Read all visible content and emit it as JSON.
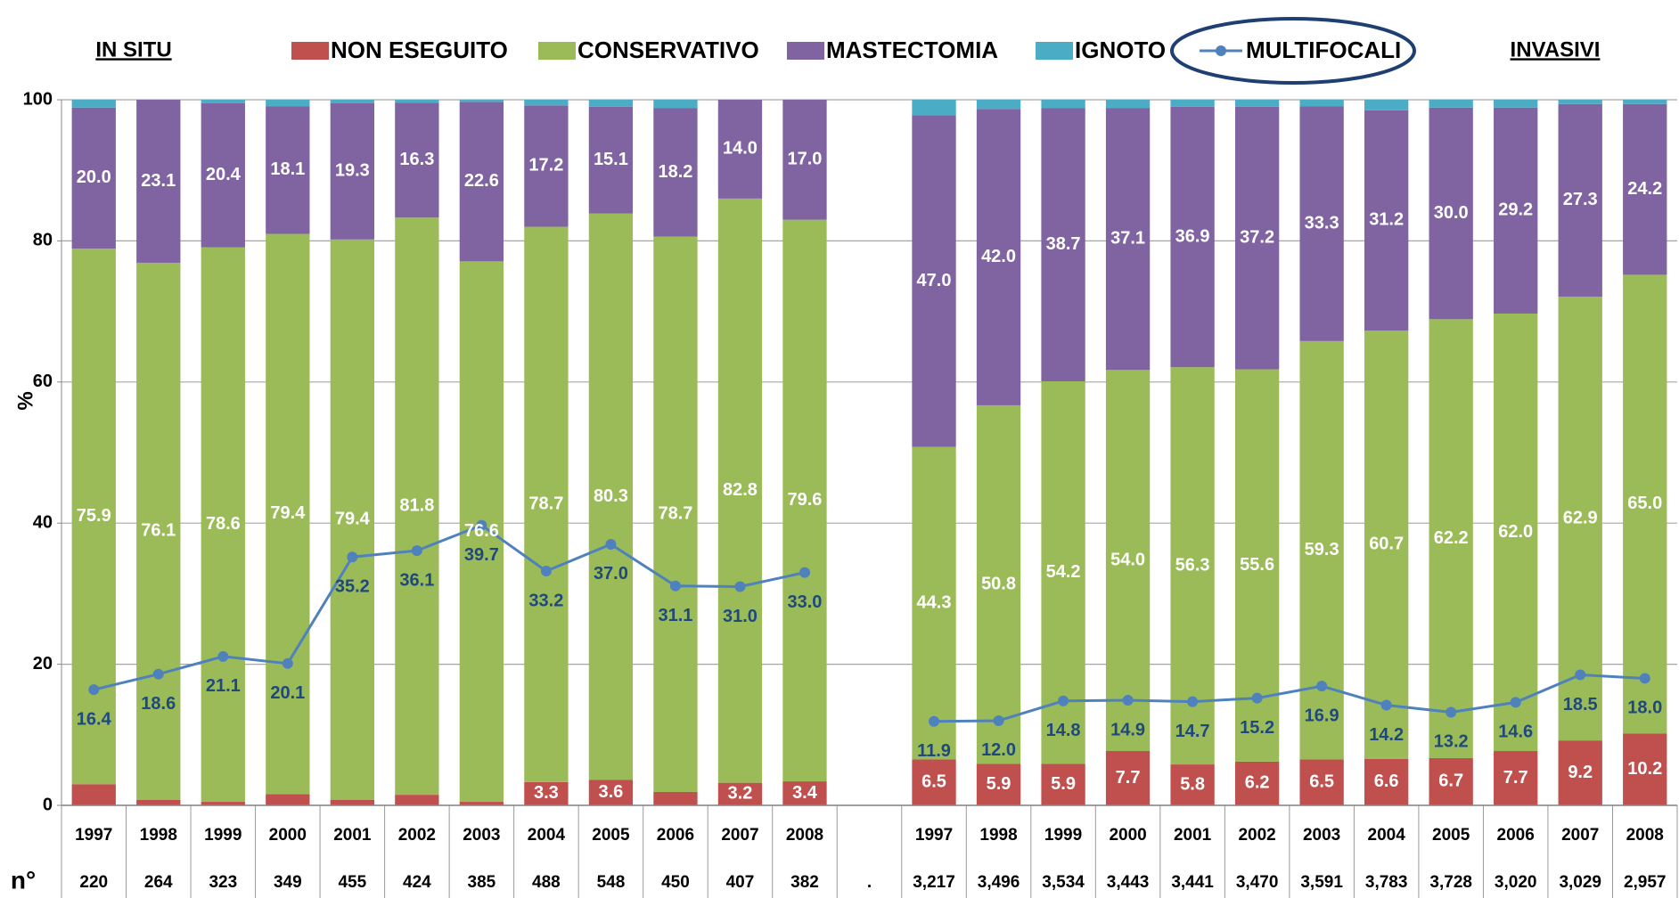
{
  "chart_data": {
    "type": "bar",
    "stacked": true,
    "group_labels": [
      "IN SITU",
      "INVASIVI"
    ],
    "ylabel": "%",
    "row_label": "n°",
    "categories": [
      "1997",
      "1998",
      "1999",
      "2000",
      "2001",
      "2002",
      "2003",
      "2004",
      "2005",
      "2006",
      "2007",
      "2008",
      null,
      "1997",
      "1998",
      "1999",
      "2000",
      "2001",
      "2002",
      "2003",
      "2004",
      "2005",
      "2006",
      "2007",
      "2008"
    ],
    "counts": [
      "220",
      "264",
      "323",
      "349",
      "455",
      "424",
      "385",
      "488",
      "548",
      "450",
      "407",
      "382",
      ".",
      "3,217",
      "3,496",
      "3,534",
      "3,443",
      "3,441",
      "3,470",
      "3,591",
      "3,783",
      "3,728",
      "3,020",
      "3,029",
      "2,957"
    ],
    "ylim": [
      0,
      100
    ],
    "yticks": [
      0,
      20,
      40,
      60,
      80,
      100
    ],
    "grid": true,
    "series": [
      {
        "name": "NON ESEGUITO",
        "color": "#c0504d",
        "type": "bar",
        "values": [
          3.0,
          0.8,
          0.5,
          1.6,
          0.8,
          1.5,
          0.5,
          3.3,
          3.6,
          1.9,
          3.2,
          3.4,
          null,
          6.5,
          5.9,
          5.9,
          7.7,
          5.8,
          6.2,
          6.5,
          6.6,
          6.7,
          7.7,
          9.2,
          10.2
        ],
        "value_labels": [
          null,
          null,
          null,
          null,
          null,
          null,
          null,
          "3.3",
          "3.6",
          null,
          "3.2",
          "3.4",
          null,
          "6.5",
          "5.9",
          "5.9",
          "7.7",
          "5.8",
          "6.2",
          "6.5",
          "6.6",
          "6.7",
          "7.7",
          "9.2",
          "10.2"
        ]
      },
      {
        "name": "CONSERVATIVO",
        "color": "#9bbb59",
        "type": "bar",
        "values": [
          75.9,
          76.1,
          78.6,
          79.4,
          79.4,
          81.8,
          76.6,
          78.7,
          80.3,
          78.7,
          82.8,
          79.6,
          null,
          44.3,
          50.8,
          54.2,
          54.0,
          56.3,
          55.6,
          59.3,
          60.7,
          62.2,
          62.0,
          62.9,
          65.0
        ],
        "value_labels": [
          "75.9",
          "76.1",
          "78.6",
          "79.4",
          "79.4",
          "81.8",
          "76.6",
          "78.7",
          "80.3",
          "78.7",
          "82.8",
          "79.6",
          null,
          "44.3",
          "50.8",
          "54.2",
          "54.0",
          "56.3",
          "55.6",
          "59.3",
          "60.7",
          "62.2",
          "62.0",
          "62.9",
          "65.0"
        ]
      },
      {
        "name": "MASTECTOMIA",
        "color": "#8064a2",
        "type": "bar",
        "values": [
          20.0,
          23.1,
          20.4,
          18.1,
          19.3,
          16.3,
          22.6,
          17.2,
          15.1,
          18.2,
          14.0,
          17.0,
          null,
          47.0,
          42.0,
          38.7,
          37.1,
          36.9,
          37.2,
          33.3,
          31.2,
          30.0,
          29.2,
          27.3,
          24.2
        ],
        "value_labels": [
          "20.0",
          "23.1",
          "20.4",
          "18.1",
          "19.3",
          "16.3",
          "22.6",
          "17.2",
          "15.1",
          "18.2",
          "14.0",
          "17.0",
          null,
          "47.0",
          "42.0",
          "38.7",
          "37.1",
          "36.9",
          "37.2",
          "33.3",
          "31.2",
          "30.0",
          "29.2",
          "27.3",
          "24.2"
        ]
      },
      {
        "name": "IGNOTO",
        "color": "#4bacc6",
        "type": "bar",
        "values": [
          1.1,
          0.0,
          0.5,
          0.9,
          0.5,
          0.4,
          0.3,
          0.8,
          1.0,
          1.2,
          0.0,
          0.0,
          null,
          2.2,
          1.3,
          1.2,
          1.2,
          1.0,
          1.0,
          0.9,
          1.5,
          1.1,
          1.1,
          0.6,
          0.6
        ]
      },
      {
        "name": "MULTIFOCALI",
        "color": "#4f81bd",
        "type": "line",
        "label_color": "#1f497d",
        "values": [
          16.4,
          18.6,
          21.1,
          20.1,
          35.2,
          36.1,
          39.7,
          33.2,
          37.0,
          31.1,
          31.0,
          33.0,
          null,
          11.9,
          12.0,
          14.8,
          14.9,
          14.7,
          15.2,
          16.9,
          14.2,
          13.2,
          14.6,
          18.5,
          18.0
        ],
        "value_labels": [
          "16.4",
          "18.6",
          "21.1",
          "20.1",
          "35.2",
          "36.1",
          "39.7",
          "33.2",
          "37.0",
          "31.1",
          "31.0",
          "33.0",
          null,
          "11.9",
          "12.0",
          "14.8",
          "14.9",
          "14.7",
          "15.2",
          "16.9",
          "14.2",
          "13.2",
          "14.6",
          "18.5",
          "18.0"
        ]
      }
    ]
  }
}
